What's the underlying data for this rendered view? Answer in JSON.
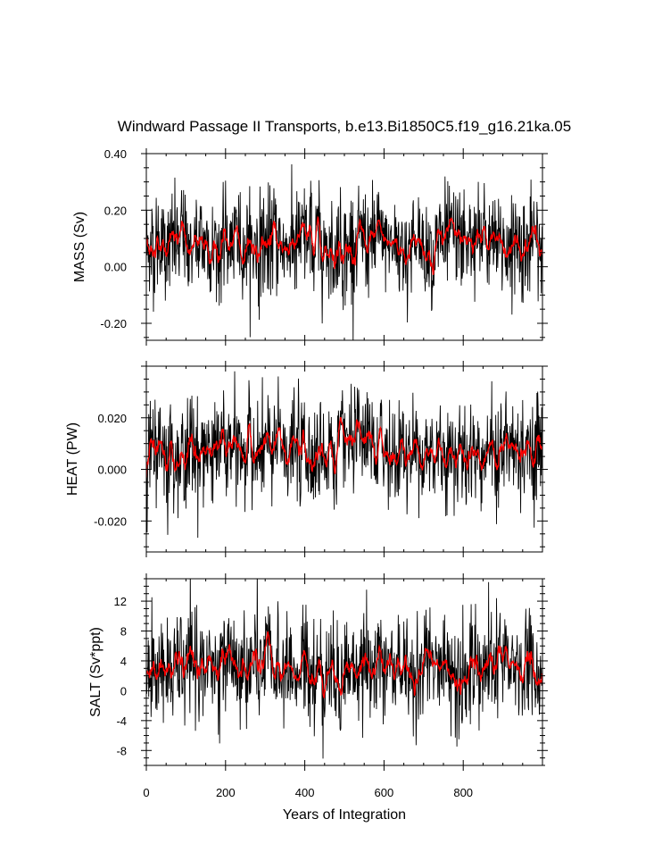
{
  "figure": {
    "title": "Windward Passage II Transports, b.e13.Bi1850C5.f19_g16.21ka.05",
    "xlabel": "Years of Integration",
    "x_tick_labels": [
      "0",
      "200",
      "400",
      "600",
      "800"
    ]
  },
  "chart_data": [
    {
      "type": "line",
      "ylabel": "MASS (Sv)",
      "xlim": [
        0,
        1000
      ],
      "ylim": [
        -0.26,
        0.4
      ],
      "x_ticks": [
        0,
        200,
        400,
        600,
        800
      ],
      "y_ticks": [
        -0.2,
        0.0,
        0.2,
        0.4
      ],
      "y_tick_labels": [
        "-0.20",
        "0.00",
        "0.20",
        "0.40"
      ],
      "series": [
        {
          "style": "raw",
          "color": "#000000",
          "x_range": [
            0,
            1000
          ],
          "typical_mean": 0.08,
          "typical_spread": [
            -0.15,
            0.35
          ]
        },
        {
          "style": "smoothed",
          "color": "#ff0000",
          "x_range": [
            0,
            1000
          ],
          "typical_mean": 0.08,
          "typical_spread": [
            0.03,
            0.13
          ]
        }
      ]
    },
    {
      "type": "line",
      "ylabel": "HEAT (PW)",
      "xlim": [
        0,
        1000
      ],
      "ylim": [
        -0.032,
        0.04
      ],
      "x_ticks": [
        0,
        200,
        400,
        600,
        800
      ],
      "y_ticks": [
        -0.02,
        0.0,
        0.02
      ],
      "y_tick_labels": [
        "-0.020",
        "0.000",
        "0.020"
      ],
      "series": [
        {
          "style": "raw",
          "color": "#000000",
          "x_range": [
            0,
            1000
          ],
          "typical_mean": 0.0075,
          "typical_spread": [
            -0.02,
            0.035
          ]
        },
        {
          "style": "smoothed",
          "color": "#ff0000",
          "x_range": [
            0,
            1000
          ],
          "typical_mean": 0.0075,
          "typical_spread": [
            0.003,
            0.012
          ]
        }
      ]
    },
    {
      "type": "line",
      "ylabel": "SALT (Sv*ppt)",
      "xlim": [
        0,
        1000
      ],
      "ylim": [
        -10,
        15
      ],
      "x_ticks": [
        0,
        200,
        400,
        600,
        800
      ],
      "y_ticks": [
        -8,
        -4,
        0,
        4,
        8,
        12
      ],
      "y_tick_labels": [
        "-8",
        "-4",
        "0",
        "4",
        "8",
        "12"
      ],
      "series": [
        {
          "style": "raw",
          "color": "#000000",
          "x_range": [
            0,
            1000
          ],
          "typical_mean": 3.0,
          "typical_spread": [
            -7,
            13
          ]
        },
        {
          "style": "smoothed",
          "color": "#ff0000",
          "x_range": [
            0,
            1000
          ],
          "typical_mean": 3.0,
          "typical_spread": [
            1,
            5
          ]
        }
      ]
    }
  ]
}
